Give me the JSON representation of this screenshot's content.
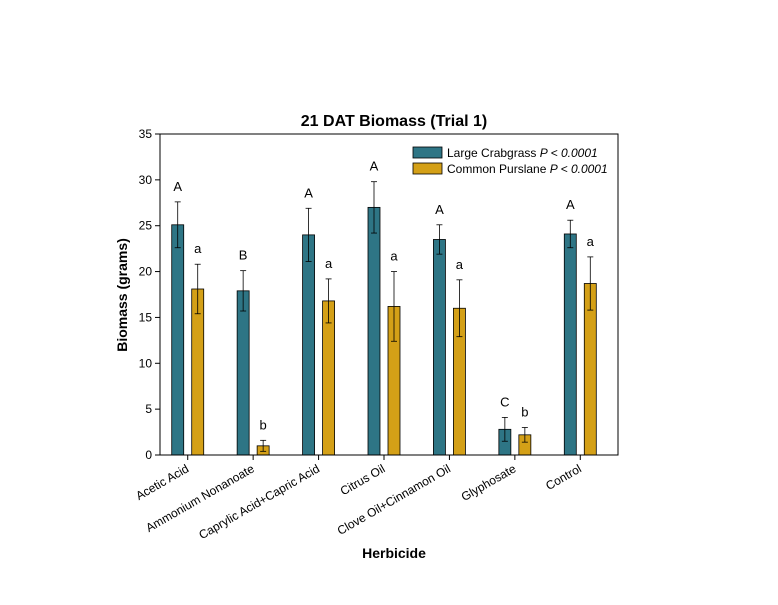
{
  "chart_data": {
    "type": "bar",
    "title": "21 DAT Biomass (Trial 1)",
    "xlabel": "Herbicide",
    "ylabel": "Biomass (grams)",
    "ylim": [
      0,
      35
    ],
    "yticks": [
      0,
      5,
      10,
      15,
      20,
      25,
      30,
      35
    ],
    "categories": [
      "Acetic Acid",
      "Ammonium Nonanoate",
      "Caprylic Acid+Capric Acid",
      "Citrus Oil",
      "Clove Oil+Cinnamon Oil",
      "Glyphosate",
      "Control"
    ],
    "legend_position": "top-right",
    "series": [
      {
        "name": "Large Crabgrass",
        "p_value": "P < 0.0001",
        "color": "#2e7585",
        "values": [
          25.1,
          17.9,
          24.0,
          27.0,
          23.5,
          2.8,
          24.1
        ],
        "errors": [
          2.5,
          2.2,
          2.9,
          2.8,
          1.6,
          1.3,
          1.5
        ],
        "letters": [
          "A",
          "B",
          "A",
          "A",
          "A",
          "C",
          "A"
        ]
      },
      {
        "name": "Common Purslane",
        "p_value": "P < 0.0001",
        "color": "#d4a017",
        "values": [
          18.1,
          1.0,
          16.8,
          16.2,
          16.0,
          2.2,
          18.7
        ],
        "errors": [
          2.7,
          0.6,
          2.4,
          3.8,
          3.1,
          0.8,
          2.9
        ],
        "letters": [
          "a",
          "b",
          "a",
          "a",
          "a",
          "b",
          "a"
        ]
      }
    ]
  }
}
